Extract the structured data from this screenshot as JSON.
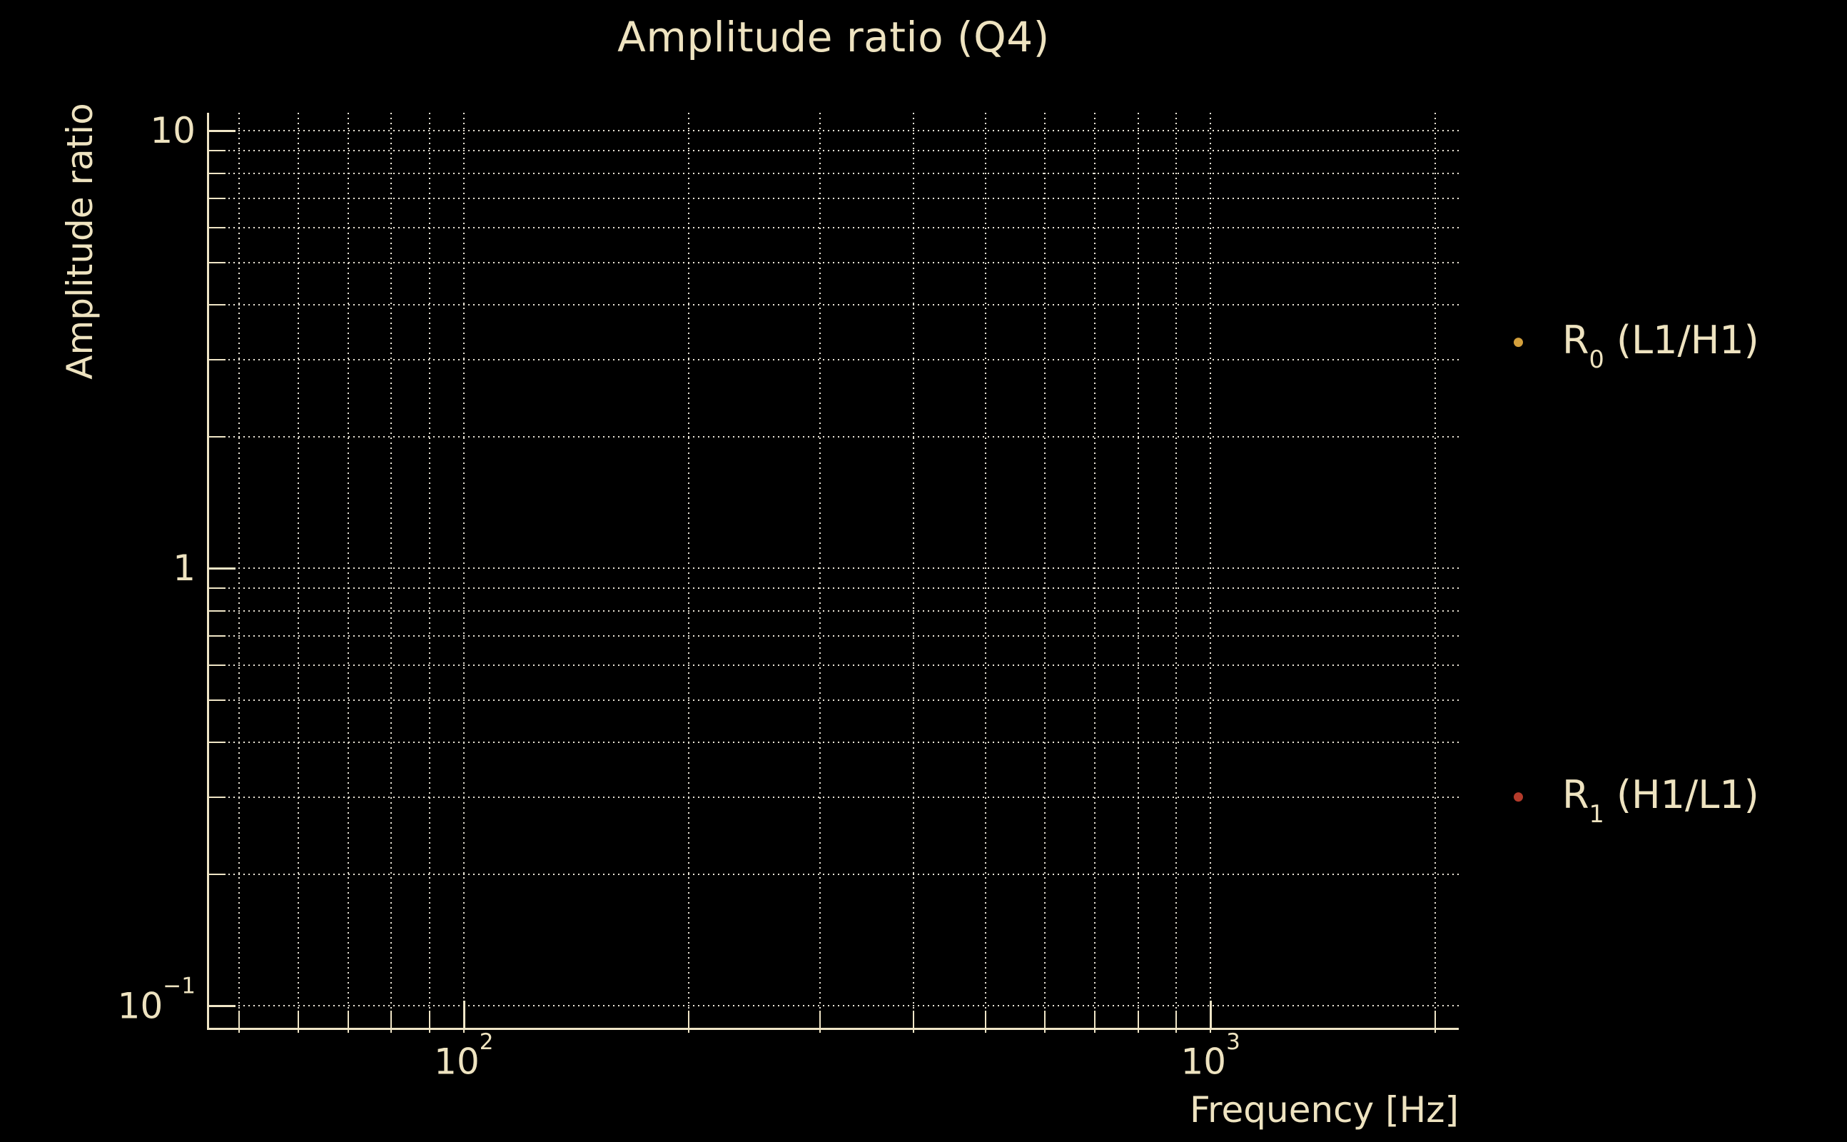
{
  "title": "Amplitude ratio (Q4)",
  "colors": {
    "background": "#000000",
    "text": "#eee3c0",
    "grid": "#ece6d8",
    "spine": "#efe5c6",
    "series_r0": "#d4a03c",
    "series_r1": "#b43b2b"
  },
  "chart_data": {
    "type": "scatter",
    "title": "Amplitude ratio (Q4)",
    "xlabel": "Frequency [Hz]",
    "ylabel": "Amplitude ratio",
    "x_scale": "log",
    "y_scale": "log",
    "xlim": [
      45.5,
      2150
    ],
    "ylim": [
      0.089,
      11.0
    ],
    "grid": "major and minor, dotted, on black background",
    "legend_position": "outside right, frameless",
    "x_gridlines": [
      50,
      60,
      70,
      80,
      90,
      100,
      200,
      300,
      400,
      500,
      600,
      700,
      800,
      900,
      1000,
      2000
    ],
    "x_major": [
      100,
      1000
    ],
    "y_gridlines": [
      0.1,
      0.2,
      0.3,
      0.4,
      0.5,
      0.6,
      0.7,
      0.8,
      0.9,
      1,
      2,
      3,
      4,
      5,
      6,
      7,
      8,
      9,
      10
    ],
    "y_major": [
      0.1,
      1,
      10
    ],
    "x_tick_labels": [
      {
        "value": 100,
        "base": "10",
        "exp": "2"
      },
      {
        "value": 1000,
        "base": "10",
        "exp": "3"
      }
    ],
    "y_tick_labels": [
      {
        "value": 10,
        "base": "10",
        "exp": ""
      },
      {
        "value": 1,
        "base": "1",
        "exp": ""
      },
      {
        "value": 0.1,
        "base": "10",
        "exp": "−1"
      }
    ],
    "series": [
      {
        "name": "R0 (L1/H1)",
        "color": "#d4a03c",
        "marker": "dot",
        "points": []
      },
      {
        "name": "R1 (H1/L1)",
        "color": "#b43b2b",
        "marker": "dot",
        "points": []
      }
    ],
    "legend_entries": [
      {
        "base": "R",
        "sub": "0",
        "rest": " (L1/H1)",
        "color": "#d4a03c",
        "center_y": 480
      },
      {
        "base": "R",
        "sub": "1",
        "rest": " (H1/L1)",
        "color": "#b43b2b",
        "center_y": 1117
      }
    ]
  }
}
